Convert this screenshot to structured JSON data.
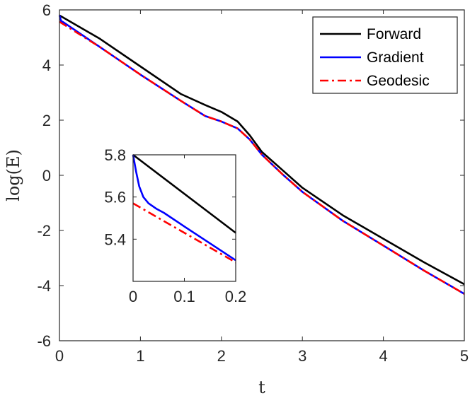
{
  "chart_data": [
    {
      "type": "line",
      "xlabel": "t",
      "ylabel": "log(E)",
      "xlim": [
        0,
        5
      ],
      "ylim": [
        -6,
        6
      ],
      "xticks": [
        0,
        1,
        2,
        3,
        4,
        5
      ],
      "yticks": [
        -6,
        -4,
        -2,
        0,
        2,
        4,
        6
      ],
      "xtick_labels": [
        "0",
        "1",
        "2",
        "3",
        "4",
        "5"
      ],
      "ytick_labels": [
        "-6",
        "-4",
        "-2",
        "0",
        "2",
        "4",
        "6"
      ],
      "grid": false,
      "legend_position": "top-right",
      "series": [
        {
          "name": "Forward",
          "color": "#000000",
          "style": "solid",
          "x": [
            0,
            0.5,
            1,
            1.5,
            1.8,
            2.0,
            2.2,
            2.35,
            2.5,
            2.75,
            3,
            3.5,
            4,
            4.5,
            5
          ],
          "y": [
            5.8,
            4.95,
            3.95,
            2.95,
            2.55,
            2.3,
            1.95,
            1.45,
            0.85,
            0.2,
            -0.45,
            -1.45,
            -2.3,
            -3.15,
            -3.95
          ]
        },
        {
          "name": "Gradient",
          "color": "#0000ff",
          "style": "solid",
          "x": [
            0,
            0.02,
            0.05,
            0.5,
            1,
            1.5,
            1.8,
            2.0,
            2.2,
            2.35,
            2.5,
            2.75,
            3,
            3.5,
            4,
            4.5,
            5
          ],
          "y": [
            5.8,
            5.6,
            5.55,
            4.65,
            3.65,
            2.7,
            2.15,
            1.95,
            1.7,
            1.3,
            0.75,
            0.05,
            -0.6,
            -1.65,
            -2.55,
            -3.45,
            -4.3
          ]
        },
        {
          "name": "Geodesic",
          "color": "#ff0000",
          "style": "dashdot",
          "x": [
            0,
            0.5,
            1,
            1.5,
            1.8,
            2.0,
            2.2,
            2.35,
            2.5,
            2.75,
            3,
            3.5,
            4,
            4.5,
            5
          ],
          "y": [
            5.57,
            4.65,
            3.65,
            2.7,
            2.15,
            1.95,
            1.7,
            1.3,
            0.75,
            0.05,
            -0.6,
            -1.65,
            -2.55,
            -3.45,
            -4.3
          ]
        }
      ]
    },
    {
      "type": "line",
      "xlim": [
        0,
        0.2
      ],
      "ylim": [
        5.2,
        5.8
      ],
      "xticks": [
        0,
        0.1,
        0.2
      ],
      "yticks": [
        5.4,
        5.6,
        5.8
      ],
      "xtick_labels": [
        "0",
        "0.1",
        "0.2"
      ],
      "ytick_labels": [
        "5.4",
        "5.6",
        "5.8"
      ],
      "series": [
        {
          "name": "Forward",
          "color": "#000000",
          "style": "solid",
          "x": [
            0,
            0.2
          ],
          "y": [
            5.8,
            5.43
          ]
        },
        {
          "name": "Gradient",
          "color": "#0000ff",
          "style": "solid",
          "x": [
            0,
            0.006,
            0.012,
            0.02,
            0.03,
            0.045,
            0.06,
            0.1,
            0.15,
            0.2
          ],
          "y": [
            5.8,
            5.72,
            5.65,
            5.6,
            5.57,
            5.545,
            5.525,
            5.46,
            5.38,
            5.3
          ]
        },
        {
          "name": "Geodesic",
          "color": "#ff0000",
          "style": "dashdot",
          "x": [
            0,
            0.2
          ],
          "y": [
            5.57,
            5.29
          ]
        }
      ]
    }
  ]
}
